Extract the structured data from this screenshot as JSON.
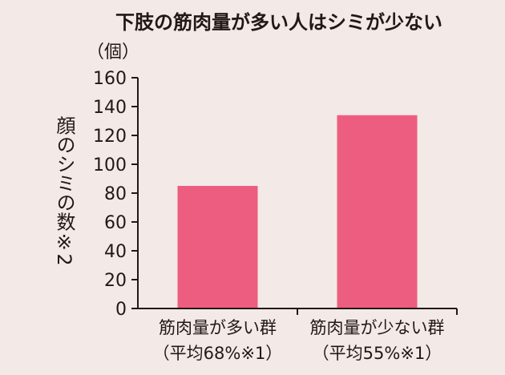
{
  "chart_data": {
    "type": "bar",
    "title": "下肢の筋肉量が多い人はシミが少ない",
    "unit_label": "（個）",
    "ylabel": "顔のシミの数※2",
    "ylim": [
      0,
      160
    ],
    "yticks": [
      0,
      20,
      40,
      60,
      80,
      100,
      120,
      140,
      160
    ],
    "categories": [
      {
        "line1": "筋肉量が多い群",
        "line2": "（平均68%※1）"
      },
      {
        "line1": "筋肉量が少ない群",
        "line2": "（平均55%※1）"
      }
    ],
    "values": [
      85,
      134
    ],
    "bar_color": "#ed5d7f",
    "grid": false,
    "legend": "none"
  }
}
